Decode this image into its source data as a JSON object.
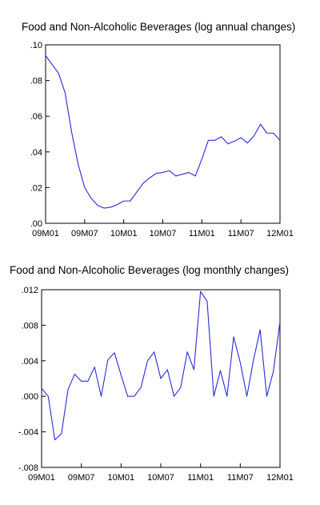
{
  "chart_data": [
    {
      "type": "line",
      "title": "Food and Non-Alcoholic Beverages (log annual changes)",
      "xlabel": "",
      "ylabel": "",
      "ylim": [
        0,
        0.1
      ],
      "yticks": [
        0,
        0.02,
        0.04,
        0.06,
        0.08,
        0.1
      ],
      "ytick_labels": [
        ".00",
        ".02",
        ".04",
        ".06",
        ".08",
        ".10"
      ],
      "xticks": [
        0,
        6,
        12,
        18,
        24,
        30,
        36
      ],
      "xtick_labels": [
        "09M01",
        "09M07",
        "10M01",
        "10M07",
        "11M01",
        "11M07",
        "12M01"
      ],
      "grid": false,
      "series_color": "#2a2ae0",
      "series": [
        {
          "values": [
            0.094,
            0.089,
            0.084,
            0.073,
            0.051,
            0.033,
            0.02,
            0.014,
            0.01,
            0.0085,
            0.009,
            0.0105,
            0.0125,
            0.0125,
            0.0175,
            0.0225,
            0.0255,
            0.028,
            0.0285,
            0.0295,
            0.0265,
            0.0275,
            0.0285,
            0.0265,
            0.036,
            0.0465,
            0.0465,
            0.0485,
            0.0445,
            0.046,
            0.048,
            0.045,
            0.049,
            0.0555,
            0.0505,
            0.0505,
            0.0465
          ]
        }
      ]
    },
    {
      "type": "line",
      "title": "Food and Non-Alcoholic Beverages (log monthly changes)",
      "xlabel": "",
      "ylabel": "",
      "ylim": [
        -0.008,
        0.012
      ],
      "yticks": [
        -0.008,
        -0.004,
        0,
        0.004,
        0.008,
        0.012
      ],
      "ytick_labels": [
        "-.008",
        "-.004",
        ".000",
        ".004",
        ".008",
        ".012"
      ],
      "xticks": [
        0,
        6,
        12,
        18,
        24,
        30,
        36
      ],
      "xtick_labels": [
        "09M01",
        "09M07",
        "10M01",
        "10M07",
        "11M01",
        "11M07",
        "12M01"
      ],
      "grid": false,
      "series_color": "#2a2ae0",
      "series": [
        {
          "values": [
            0.0009,
            0.0,
            -0.0049,
            -0.0042,
            0.0008,
            0.0025,
            0.0017,
            0.0017,
            0.0033,
            0.0,
            0.0041,
            0.0049,
            0.0024,
            0.0,
            0.0,
            0.001,
            0.004,
            0.005,
            0.002,
            0.003,
            0.0,
            0.001,
            0.005,
            0.003,
            0.0118,
            0.0107,
            0.0,
            0.0029,
            0.0,
            0.0067,
            0.0038,
            0.0,
            0.0041,
            0.0075,
            0.0,
            0.0028,
            0.0084
          ]
        }
      ]
    }
  ]
}
